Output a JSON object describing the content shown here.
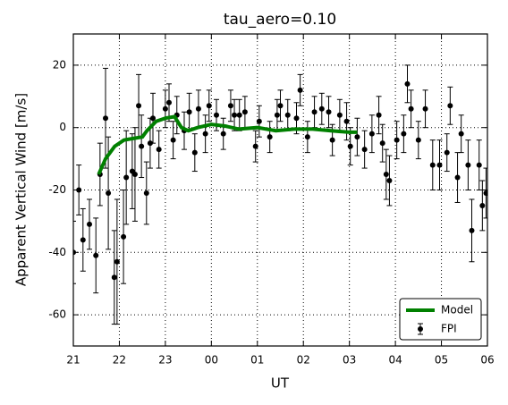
{
  "chart_data": {
    "type": "errorbar",
    "title": "tau_aero=0.10",
    "x_label": "UT",
    "y_label": "Apparent Vertical Wind [m/s]",
    "xlim": [
      21,
      30
    ],
    "xticks": [
      21,
      22,
      23,
      {
        "value": 24,
        "label": "00"
      },
      {
        "value": 25,
        "label": "01"
      },
      {
        "value": 26,
        "label": "02"
      },
      {
        "value": 27,
        "label": "03"
      },
      {
        "value": 28,
        "label": "04"
      },
      {
        "value": 29,
        "label": "05"
      },
      {
        "value": 30,
        "label": "06"
      }
    ],
    "ylim": [
      -70,
      30
    ],
    "yticks": [
      -60,
      -40,
      -20,
      0,
      20
    ],
    "grid": true,
    "legend": "lower right",
    "series": [
      {
        "name": "Model",
        "type": "line",
        "color": "#008000",
        "x": [
          21.55,
          21.7,
          21.9,
          22.1,
          22.3,
          22.5,
          22.6,
          22.8,
          23.0,
          23.2,
          23.35,
          23.5,
          23.7,
          24.0,
          24.3,
          24.6,
          25.0,
          25.4,
          25.8,
          26.2,
          26.6,
          27.0,
          27.17
        ],
        "values": [
          -15,
          -10,
          -6,
          -4,
          -3.5,
          -3,
          -1,
          2,
          3,
          3.5,
          0,
          -1,
          0,
          1,
          0.5,
          -0.5,
          0,
          -1,
          -0.5,
          -0.5,
          -1,
          -1.5,
          -1.5
        ]
      },
      {
        "name": "FPI",
        "type": "errorbar",
        "color": "#000000",
        "x": [
          21.0,
          21.12,
          21.21,
          21.35,
          21.49,
          21.58,
          21.7,
          21.76,
          21.89,
          21.95,
          22.09,
          22.15,
          22.28,
          22.34,
          22.42,
          22.48,
          22.59,
          22.67,
          22.73,
          22.86,
          23.0,
          23.08,
          23.17,
          23.25,
          23.41,
          23.52,
          23.64,
          23.72,
          23.87,
          23.95,
          24.11,
          24.26,
          24.42,
          24.5,
          24.61,
          24.73,
          24.96,
          25.04,
          25.27,
          25.43,
          25.5,
          25.66,
          25.85,
          25.93,
          26.09,
          26.24,
          26.4,
          26.55,
          26.63,
          26.79,
          26.94,
          27.02,
          27.17,
          27.33,
          27.49,
          27.64,
          27.72,
          27.8,
          27.87,
          28.03,
          28.18,
          28.26,
          28.34,
          28.5,
          28.65,
          28.81,
          28.96,
          29.12,
          29.19,
          29.35,
          29.43,
          29.58,
          29.66,
          29.82,
          29.89,
          29.97
        ],
        "values": [
          -40,
          -20,
          -36,
          -31,
          -41,
          -15,
          3,
          -21,
          -48,
          -43,
          -35,
          -16,
          -14,
          -15,
          7,
          -6,
          -21,
          -5,
          3,
          -7,
          6,
          8,
          -4,
          4,
          -1,
          5,
          -8,
          6,
          -2,
          7,
          4,
          -2,
          7,
          4,
          4,
          5,
          -6,
          2,
          -3,
          4,
          7,
          4,
          3,
          12,
          -3,
          5,
          6,
          5,
          -4,
          4,
          2,
          -6,
          -3,
          -7,
          -2,
          4,
          -5,
          -15,
          -17,
          -4,
          -2,
          14,
          6,
          -4,
          6,
          -12,
          -12,
          -8,
          7,
          -16,
          -2,
          -12,
          -33,
          -12,
          -25,
          -21
        ],
        "errors": [
          10,
          8,
          10,
          8,
          12,
          10,
          16,
          18,
          15,
          20,
          15,
          15,
          12,
          15,
          10,
          10,
          10,
          8,
          8,
          6,
          6,
          6,
          6,
          6,
          6,
          6,
          6,
          6,
          6,
          5,
          5,
          5,
          5,
          5,
          5,
          5,
          5,
          5,
          5,
          5,
          5,
          5,
          5,
          5,
          5,
          5,
          5,
          5,
          5,
          5,
          6,
          6,
          6,
          6,
          6,
          6,
          6,
          8,
          8,
          6,
          6,
          6,
          6,
          6,
          6,
          8,
          8,
          6,
          6,
          8,
          6,
          8,
          10,
          8,
          8,
          8
        ]
      }
    ]
  }
}
